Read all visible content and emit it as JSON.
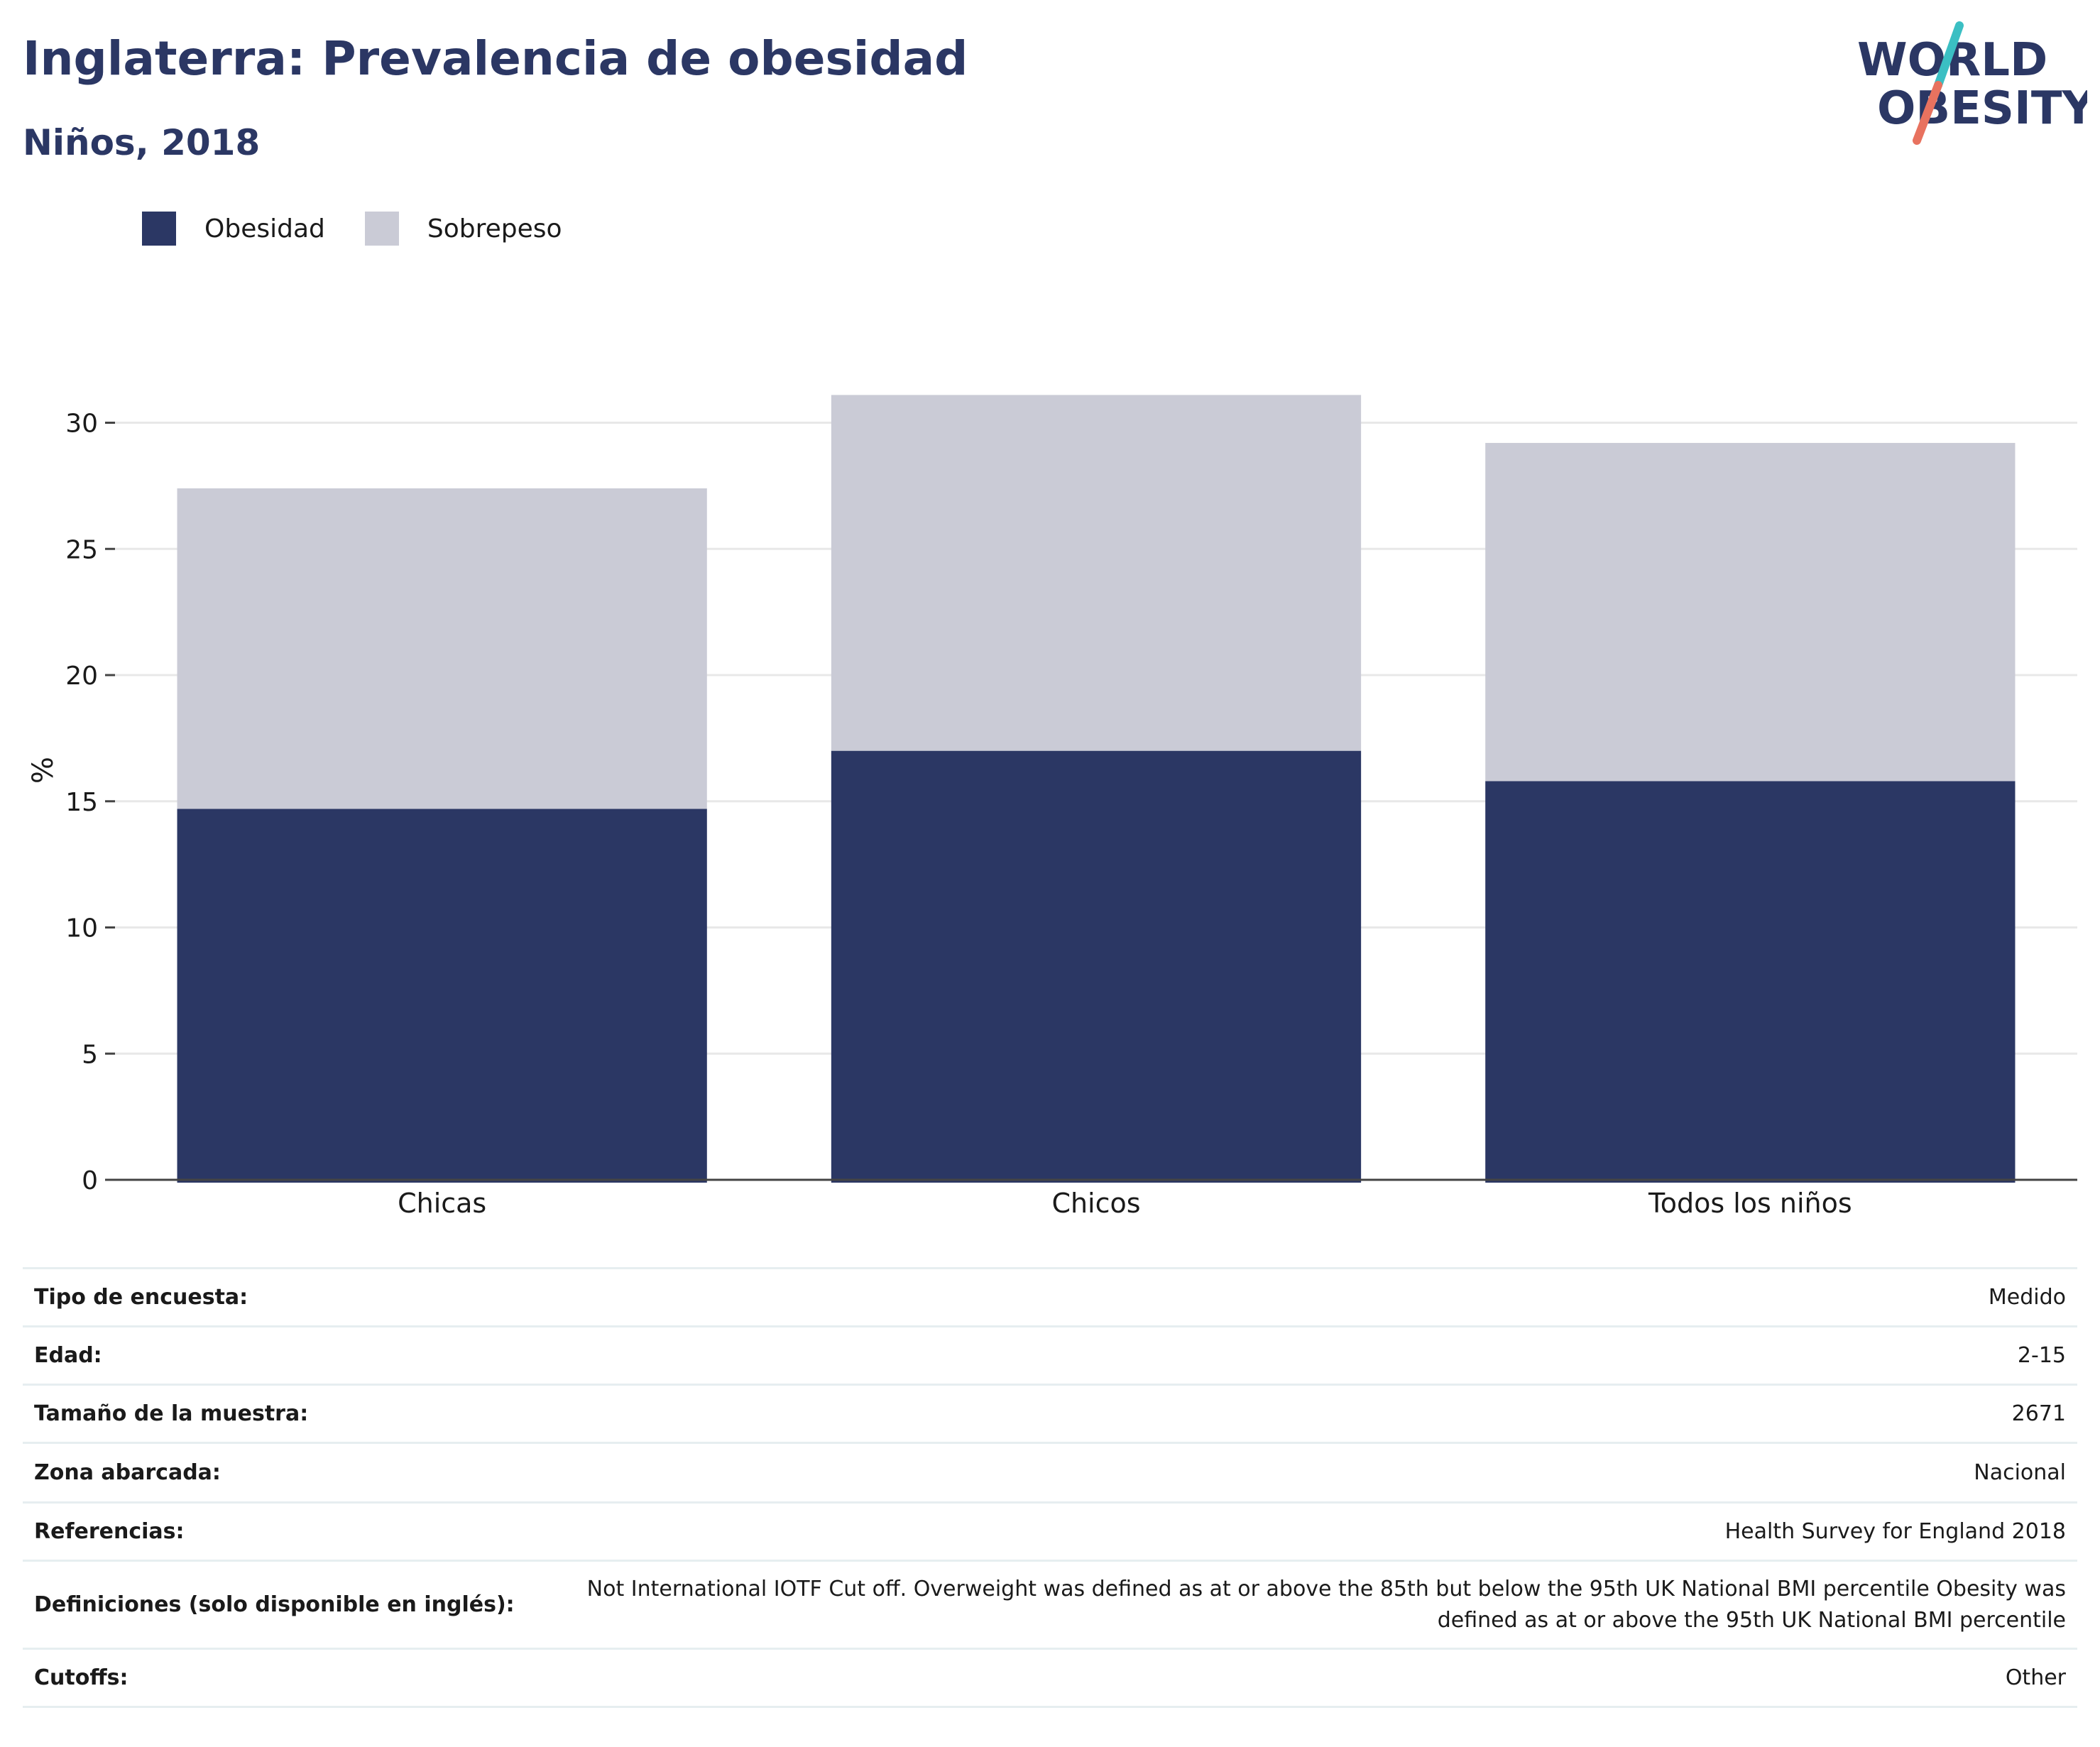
{
  "header": {
    "title": "Inglaterra: Prevalencia de obesidad",
    "subtitle": "Niños, 2018"
  },
  "logo": {
    "line1": "WORLD",
    "line2": "OBESITY"
  },
  "colors": {
    "obesity": "#2b3764",
    "overweight": "#cacbd6",
    "accent_teal": "#3bbfc3",
    "accent_red": "#e8725f"
  },
  "chart_data": {
    "type": "bar",
    "stacked": true,
    "categories": [
      "Chicas",
      "Chicos",
      "Todos los niños"
    ],
    "series": [
      {
        "name": "Obesidad",
        "values": [
          14.7,
          17.0,
          15.8
        ],
        "color": "#2b3764"
      },
      {
        "name": "Sobrepeso",
        "values": [
          12.7,
          14.1,
          13.4
        ],
        "color": "#cacbd6"
      }
    ],
    "ylabel": "%",
    "ylim": [
      0,
      30
    ],
    "yticks": [
      0,
      5,
      10,
      15,
      20,
      25,
      30
    ],
    "grid": true,
    "legend": "top-left"
  },
  "info": [
    {
      "label": "Tipo de encuesta:",
      "value": "Medido"
    },
    {
      "label": "Edad:",
      "value": "2-15"
    },
    {
      "label": "Tamaño de la muestra:",
      "value": "2671"
    },
    {
      "label": "Zona abarcada:",
      "value": "Nacional"
    },
    {
      "label": "Referencias:",
      "value": "Health Survey for England 2018"
    },
    {
      "label": "Definiciones (solo disponible en inglés):",
      "value": "Not International IOTF Cut off. Overweight was defined as at or above the 85th but below the 95th UK National BMI percentile Obesity was defined as at or above the 95th UK National BMI percentile"
    },
    {
      "label": "Cutoffs:",
      "value": "Other"
    }
  ]
}
